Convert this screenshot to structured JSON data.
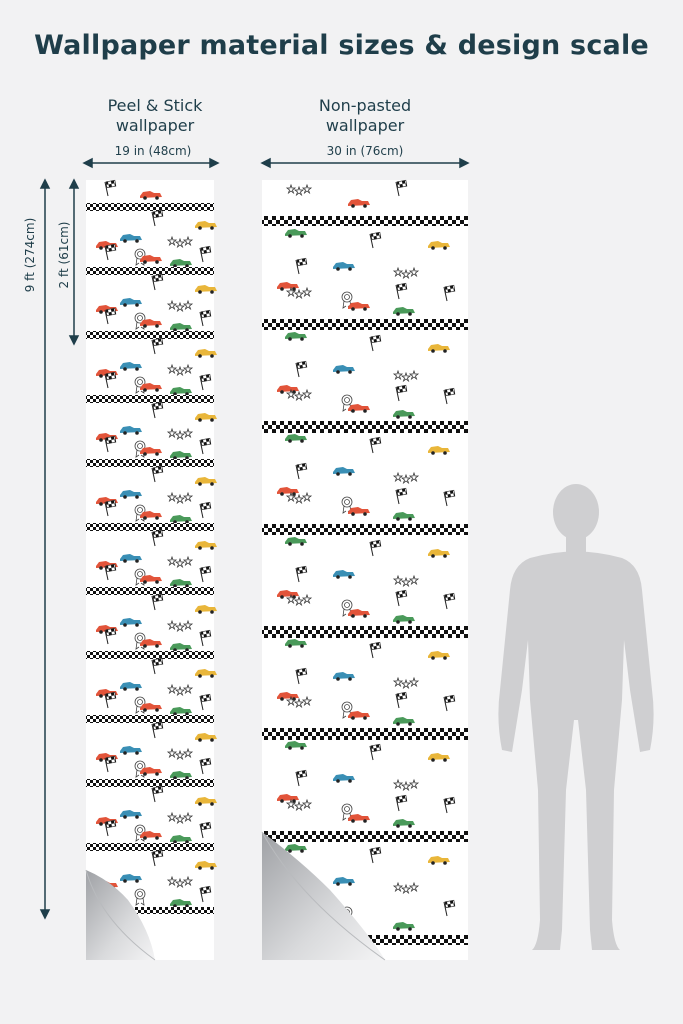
{
  "title": "Wallpaper material sizes & design scale",
  "panels": [
    {
      "name": "Peel & Stick",
      "name_line2": "wallpaper",
      "width_label": "19 in (48cm)"
    },
    {
      "name": "Non-pasted",
      "name_line2": "wallpaper",
      "width_label": "30 in (76cm)"
    }
  ],
  "height_labels": {
    "total": "9 ft (274cm)",
    "repeat": "2 ft (61cm)"
  },
  "colors": {
    "text": "#1f3e4a",
    "background": "#f2f2f3",
    "paper": "#ffffff",
    "checker": "#111111",
    "car_red": "#e2543a",
    "car_blue": "#3a8fb5",
    "car_yellow": "#e9b63a",
    "car_green": "#4a9a5a",
    "silhouette": "#cfcfd1"
  },
  "icons": [
    "red-car-icon",
    "blue-car-icon",
    "yellow-car-icon",
    "green-car-icon",
    "checkered-flag-icon",
    "stars-icon",
    "ribbon-badge-icon",
    "human-silhouette-icon"
  ]
}
